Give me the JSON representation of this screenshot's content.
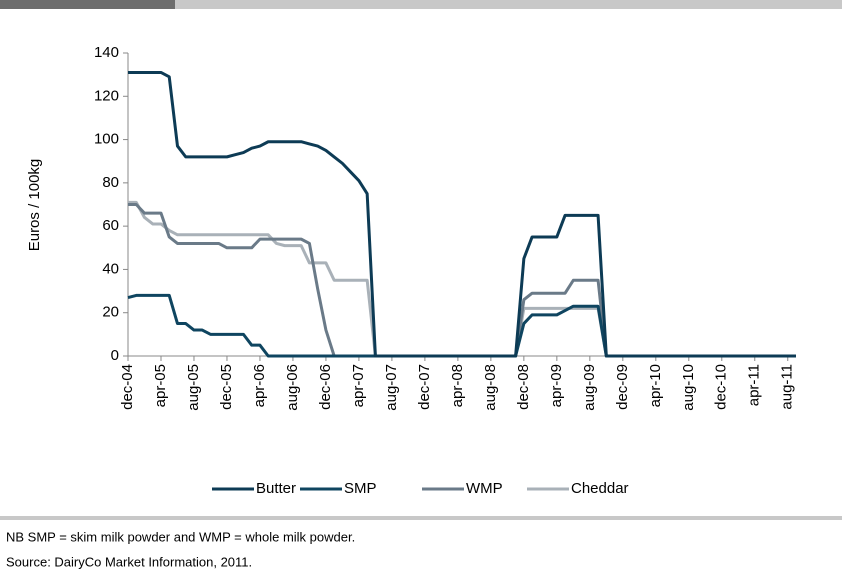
{
  "chart_data": {
    "type": "line",
    "y_label": "Euros / 100kg",
    "categories": [
      "dec-04",
      null,
      null,
      null,
      "apr-05",
      null,
      null,
      null,
      "aug-05",
      null,
      null,
      null,
      "dec-05",
      null,
      null,
      null,
      "apr-06",
      null,
      null,
      null,
      "aug-06",
      null,
      null,
      null,
      "dec-06",
      null,
      null,
      null,
      "apr-07",
      null,
      null,
      null,
      "aug-07",
      null,
      null,
      null,
      "dec-07",
      null,
      null,
      null,
      "apr-08",
      null,
      null,
      null,
      "aug-08",
      null,
      null,
      null,
      "dec-08",
      null,
      null,
      null,
      "apr-09",
      null,
      null,
      null,
      "aug-09",
      null,
      null,
      null,
      "dec-09",
      null,
      null,
      null,
      "apr-10",
      null,
      null,
      null,
      "aug-10",
      null,
      null,
      null,
      "dec-10",
      null,
      null,
      null,
      "apr-11",
      null,
      null,
      null,
      "aug-11",
      null
    ],
    "series": [
      {
        "name": "Butter",
        "color": "#0d3b55",
        "values": [
          131,
          131,
          131,
          131,
          131,
          129,
          97,
          92,
          92,
          92,
          92,
          92,
          92,
          93,
          94,
          96,
          97,
          99,
          99,
          99,
          99,
          99,
          98,
          97,
          95,
          92,
          89,
          85,
          81,
          75,
          0,
          0,
          0,
          0,
          0,
          0,
          0,
          0,
          0,
          0,
          0,
          0,
          0,
          0,
          0,
          0,
          0,
          0,
          45,
          55,
          55,
          55,
          55,
          65,
          65,
          65,
          65,
          65,
          0,
          0,
          0,
          0,
          0,
          0,
          0,
          0,
          0,
          0,
          0,
          0,
          0,
          0,
          0,
          0,
          0,
          0,
          0,
          0,
          0,
          0,
          0,
          0
        ]
      },
      {
        "name": "SMP",
        "color": "#0f4560",
        "values": [
          27,
          28,
          28,
          28,
          28,
          28,
          15,
          15,
          12,
          12,
          10,
          10,
          10,
          10,
          10,
          5,
          5,
          0,
          0,
          0,
          0,
          0,
          0,
          0,
          0,
          0,
          0,
          0,
          0,
          0,
          0,
          0,
          0,
          0,
          0,
          0,
          0,
          0,
          0,
          0,
          0,
          0,
          0,
          0,
          0,
          0,
          0,
          0,
          15,
          19,
          19,
          19,
          19,
          21,
          23,
          23,
          23,
          23,
          0,
          0,
          0,
          0,
          0,
          0,
          0,
          0,
          0,
          0,
          0,
          0,
          0,
          0,
          0,
          0,
          0,
          0,
          0,
          0,
          0,
          0,
          0,
          0
        ]
      },
      {
        "name": "WMP",
        "color": "#6a7a88",
        "values": [
          70,
          70,
          66,
          66,
          66,
          55,
          52,
          52,
          52,
          52,
          52,
          52,
          50,
          50,
          50,
          50,
          54,
          54,
          54,
          54,
          54,
          54,
          52,
          31,
          12,
          0,
          0,
          0,
          0,
          0,
          0,
          0,
          0,
          0,
          0,
          0,
          0,
          0,
          0,
          0,
          0,
          0,
          0,
          0,
          0,
          0,
          0,
          0,
          26,
          29,
          29,
          29,
          29,
          29,
          35,
          35,
          35,
          35,
          0,
          0,
          0,
          0,
          0,
          0,
          0,
          0,
          0,
          0,
          0,
          0,
          0,
          0,
          0,
          0,
          0,
          0,
          0,
          0,
          0,
          0,
          0,
          0
        ]
      },
      {
        "name": "Cheddar",
        "color": "#a9b1b8",
        "values": [
          71,
          71,
          64,
          61,
          61,
          58,
          56,
          56,
          56,
          56,
          56,
          56,
          56,
          56,
          56,
          56,
          56,
          56,
          52,
          51,
          51,
          51,
          43,
          43,
          43,
          35,
          35,
          35,
          35,
          35,
          0,
          0,
          0,
          0,
          0,
          0,
          0,
          0,
          0,
          0,
          0,
          0,
          0,
          0,
          0,
          0,
          0,
          0,
          22,
          22,
          22,
          22,
          22,
          22,
          22,
          22,
          22,
          22,
          0,
          0,
          0,
          0,
          0,
          0,
          0,
          0,
          0,
          0,
          0,
          0,
          0,
          0,
          0,
          0,
          0,
          0,
          0,
          0,
          0,
          0,
          0,
          0
        ]
      }
    ],
    "ylim": [
      0,
      140
    ],
    "yticks": [
      0,
      20,
      40,
      60,
      80,
      100,
      120,
      140
    ],
    "grid": false,
    "legend": "bottom",
    "notes": [
      "NB SMP = skim milk powder and WMP = whole milk powder.",
      "Source: DairyCo Market Information, 2011."
    ]
  }
}
